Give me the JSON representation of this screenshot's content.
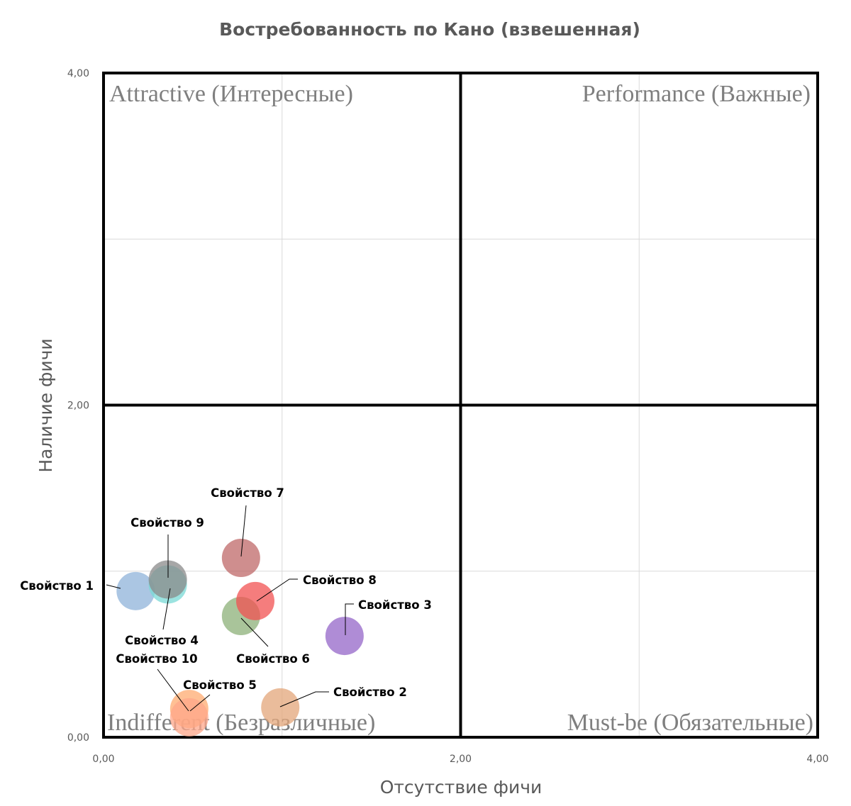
{
  "chart_data": {
    "type": "scatter",
    "title": "Востребованность по Кано (взвешенная)",
    "xlabel": "Отсутствие фичи",
    "ylabel": "Наличие фичи",
    "xlim": [
      0,
      4
    ],
    "ylim": [
      0,
      4
    ],
    "x_ticks": [
      "0,00",
      "2,00",
      "4,00"
    ],
    "y_ticks": [
      "0,00",
      "2,00",
      "4,00"
    ],
    "grid": true,
    "quadrant_dividers": {
      "x": 2,
      "y": 2
    },
    "quadrants": {
      "top_left": "Attractive (Интересные)",
      "top_right": "Performance (Важные)",
      "bottom_left": "Indifferent (Безразличные)",
      "bottom_right": "Must-be (Обязательные)"
    },
    "points": [
      {
        "label": "Свойство 1",
        "x": 0.18,
        "y": 0.88,
        "color": "#8fb3d9"
      },
      {
        "label": "Свойство 2",
        "x": 0.99,
        "y": 0.18,
        "color": "#e3a57a"
      },
      {
        "label": "Свойство 3",
        "x": 1.35,
        "y": 0.61,
        "color": "#9466c8"
      },
      {
        "label": "Свойство 4",
        "x": 0.36,
        "y": 0.92,
        "color": "#7ad9d6"
      },
      {
        "label": "Свойство 5",
        "x": 0.48,
        "y": 0.17,
        "color": "#ffab70"
      },
      {
        "label": "Свойство 6",
        "x": 0.77,
        "y": 0.73,
        "color": "#8cb078"
      },
      {
        "label": "Свойство 7",
        "x": 0.77,
        "y": 1.08,
        "color": "#bf6868"
      },
      {
        "label": "Свойство 8",
        "x": 0.85,
        "y": 0.82,
        "color": "#f25252"
      },
      {
        "label": "Свойство 9",
        "x": 0.36,
        "y": 0.95,
        "color": "#8a8a8a"
      },
      {
        "label": "Свойство 10",
        "x": 0.48,
        "y": 0.12,
        "color": "#ffa78a"
      }
    ]
  }
}
